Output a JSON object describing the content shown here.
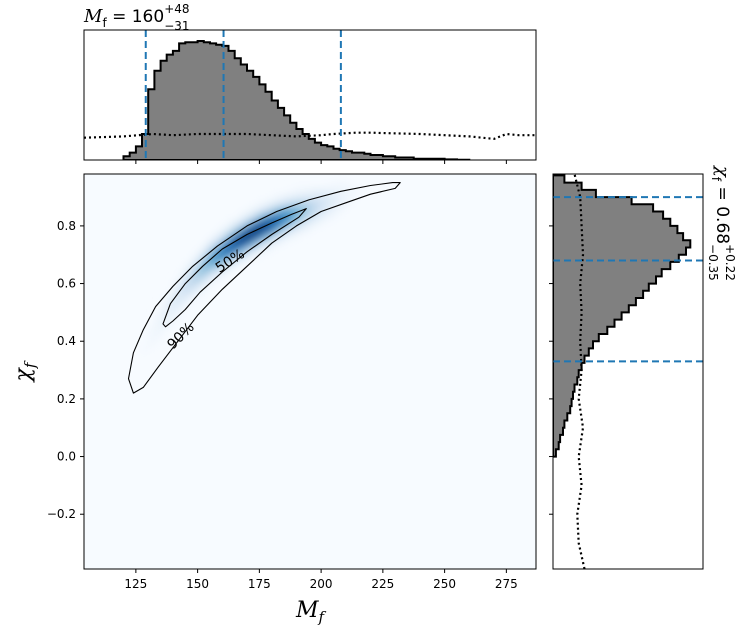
{
  "chart_data": [
    {
      "panel": "top-marginal",
      "type": "histogram",
      "annotation": {
        "symbol": "M",
        "subscript": "f",
        "equals": " = ",
        "value": "160",
        "upper": "+48",
        "lower": "−31"
      },
      "xlim": [
        104,
        287
      ],
      "ylim": [
        0,
        1.0
      ],
      "bin_edges": [
        120,
        122.5,
        125,
        127.5,
        130,
        132.5,
        135,
        137.5,
        140,
        142.5,
        145,
        147.5,
        150,
        152.5,
        155,
        157.5,
        160,
        162.5,
        165,
        167.5,
        170,
        172.5,
        175,
        177.5,
        180,
        182.5,
        185,
        187.5,
        190,
        192.5,
        195,
        197.5,
        200,
        202.5,
        205,
        207.5,
        210,
        212.5,
        215,
        217.5,
        220,
        222.5,
        225,
        227.5,
        230,
        232.5,
        235,
        237.5,
        240,
        242.5,
        245,
        250,
        255,
        260
      ],
      "histogram": [
        0.03,
        0.06,
        0.11,
        0.21,
        0.57,
        0.72,
        0.8,
        0.85,
        0.88,
        0.94,
        0.95,
        0.95,
        0.96,
        0.95,
        0.94,
        0.93,
        0.92,
        0.88,
        0.82,
        0.77,
        0.72,
        0.67,
        0.61,
        0.55,
        0.48,
        0.42,
        0.36,
        0.3,
        0.25,
        0.21,
        0.17,
        0.14,
        0.12,
        0.11,
        0.09,
        0.08,
        0.07,
        0.06,
        0.06,
        0.05,
        0.04,
        0.04,
        0.03,
        0.03,
        0.02,
        0.02,
        0.02,
        0.01,
        0.01,
        0.01,
        0.01,
        0.005,
        0.002
      ],
      "prior_line": {
        "style": "dotted",
        "x": [
          104,
          120,
          132,
          140,
          150,
          160,
          170,
          180,
          190,
          200,
          205,
          214,
          220,
          240,
          250,
          260,
          270,
          275,
          280,
          287
        ],
        "y": [
          0.18,
          0.19,
          0.21,
          0.2,
          0.21,
          0.21,
          0.21,
          0.2,
          0.19,
          0.2,
          0.21,
          0.22,
          0.22,
          0.21,
          0.2,
          0.19,
          0.17,
          0.21,
          0.2,
          0.2
        ]
      },
      "quantile_lines_x": [
        129,
        160.5,
        208
      ],
      "colors": {
        "fill": "#808080",
        "edge": "#000000",
        "quantile": "#1f77b4"
      }
    },
    {
      "panel": "joint-density",
      "type": "heatmap",
      "xlabel_symbol": "M",
      "xlabel_sub": "f",
      "ylabel_symbol": "χ",
      "ylabel_sub": "f",
      "xlim": [
        104,
        287
      ],
      "ylim": [
        -0.39,
        0.98
      ],
      "xticks": [
        125,
        150,
        175,
        200,
        225,
        250,
        275
      ],
      "xtick_labels": [
        "125",
        "150",
        "175",
        "200",
        "225",
        "250",
        "275"
      ],
      "yticks": [
        -0.2,
        0.0,
        0.2,
        0.4,
        0.6,
        0.8
      ],
      "ytick_labels": [
        "−0.2",
        "0.0",
        "0.2",
        "0.4",
        "0.6",
        "0.8"
      ],
      "density_ridge": {
        "x": [
          125,
          135,
          145,
          155,
          165,
          175,
          185,
          195
        ],
        "chi": [
          0.32,
          0.47,
          0.59,
          0.68,
          0.74,
          0.79,
          0.83,
          0.86
        ],
        "peak_x": 172,
        "peak_chi": 0.74
      },
      "contours": [
        {
          "label": "50%",
          "label_x": 163,
          "label_chi": 0.68,
          "label_rotation_deg": -33,
          "path": [
            [
              136,
              0.46
            ],
            [
              139,
              0.53
            ],
            [
              145,
              0.6
            ],
            [
              152,
              0.66
            ],
            [
              160,
              0.72
            ],
            [
              170,
              0.77
            ],
            [
              180,
              0.81
            ],
            [
              188,
              0.84
            ],
            [
              194,
              0.86
            ],
            [
              191,
              0.83
            ],
            [
              180,
              0.77
            ],
            [
              170,
              0.71
            ],
            [
              160,
              0.64
            ],
            [
              151,
              0.57
            ],
            [
              145,
              0.51
            ],
            [
              140,
              0.47
            ],
            [
              137,
              0.45
            ],
            [
              136,
              0.46
            ]
          ]
        },
        {
          "label": "90%",
          "label_x": 143,
          "label_chi": 0.42,
          "label_rotation_deg": -45,
          "path": [
            [
              122,
              0.27
            ],
            [
              124,
              0.36
            ],
            [
              128,
              0.44
            ],
            [
              133,
              0.52
            ],
            [
              140,
              0.59
            ],
            [
              148,
              0.66
            ],
            [
              158,
              0.73
            ],
            [
              170,
              0.8
            ],
            [
              182,
              0.85
            ],
            [
              195,
              0.89
            ],
            [
              208,
              0.92
            ],
            [
              220,
              0.94
            ],
            [
              229,
              0.95
            ],
            [
              232,
              0.95
            ],
            [
              230,
              0.93
            ],
            [
              220,
              0.91
            ],
            [
              210,
              0.88
            ],
            [
              200,
              0.85
            ],
            [
              190,
              0.8
            ],
            [
              180,
              0.74
            ],
            [
              170,
              0.66
            ],
            [
              160,
              0.58
            ],
            [
              150,
              0.49
            ],
            [
              142,
              0.4
            ],
            [
              134,
              0.31
            ],
            [
              128,
              0.24
            ],
            [
              124,
              0.22
            ],
            [
              122,
              0.27
            ]
          ]
        }
      ],
      "colormap": "Blues"
    },
    {
      "panel": "right-marginal",
      "type": "histogram",
      "orientation": "horizontal",
      "annotation": {
        "symbol": "χ",
        "subscript": "f",
        "equals": " = ",
        "value": "0.68",
        "upper": "+0.22",
        "lower": "−0.35"
      },
      "ylim": [
        -0.39,
        0.98
      ],
      "bin_edges": [
        0.0,
        0.025,
        0.05,
        0.075,
        0.1,
        0.125,
        0.15,
        0.175,
        0.2,
        0.225,
        0.25,
        0.275,
        0.3,
        0.325,
        0.35,
        0.375,
        0.4,
        0.425,
        0.45,
        0.475,
        0.5,
        0.525,
        0.55,
        0.575,
        0.6,
        0.625,
        0.65,
        0.675,
        0.7,
        0.725,
        0.75,
        0.775,
        0.8,
        0.825,
        0.85,
        0.875,
        0.9,
        0.925,
        0.95,
        0.975
      ],
      "histogram": [
        0.02,
        0.04,
        0.05,
        0.07,
        0.08,
        0.1,
        0.12,
        0.13,
        0.14,
        0.15,
        0.17,
        0.18,
        0.2,
        0.22,
        0.25,
        0.28,
        0.32,
        0.38,
        0.43,
        0.48,
        0.53,
        0.58,
        0.63,
        0.67,
        0.72,
        0.76,
        0.82,
        0.88,
        0.93,
        0.96,
        0.91,
        0.87,
        0.82,
        0.77,
        0.7,
        0.55,
        0.3,
        0.2,
        0.08
      ],
      "prior_line": {
        "style": "dotted",
        "chi": [
          -0.39,
          -0.3,
          -0.2,
          -0.1,
          0.0,
          0.1,
          0.2,
          0.3,
          0.4,
          0.5,
          0.6,
          0.7,
          0.8,
          0.9,
          0.98
        ],
        "w": [
          0.22,
          0.18,
          0.17,
          0.2,
          0.18,
          0.21,
          0.18,
          0.2,
          0.19,
          0.2,
          0.19,
          0.21,
          0.2,
          0.19,
          0.15
        ]
      },
      "quantile_lines_chi": [
        0.33,
        0.68,
        0.9
      ],
      "colors": {
        "fill": "#808080",
        "edge": "#000000",
        "quantile": "#1f77b4"
      }
    }
  ]
}
